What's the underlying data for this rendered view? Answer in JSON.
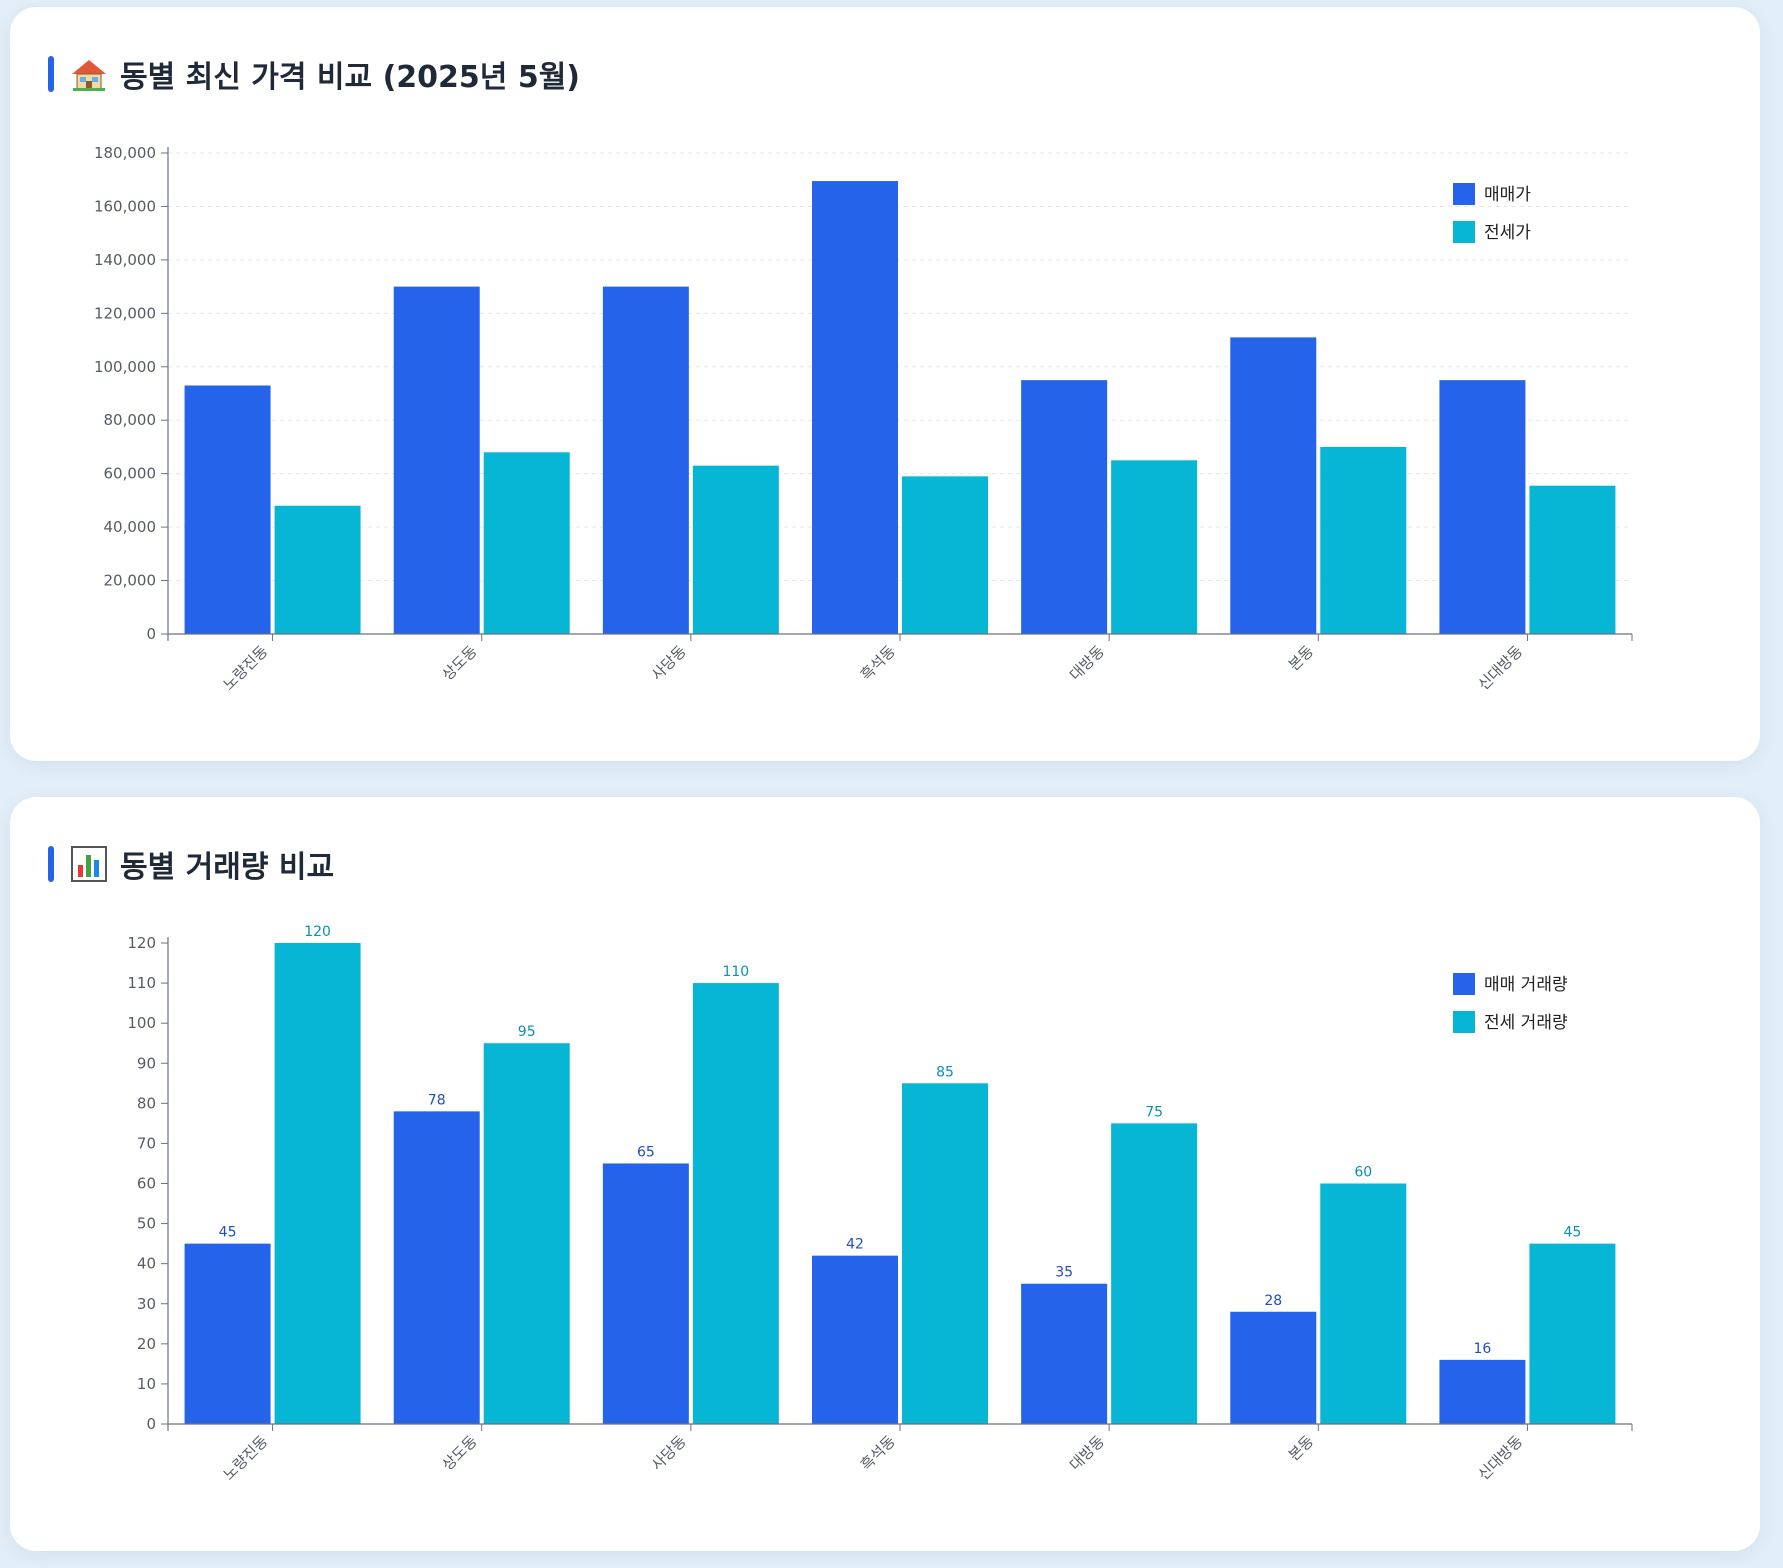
{
  "colors": {
    "sale": "#2563eb",
    "jeonse": "#06b6d4",
    "accent": "#2563eb"
  },
  "price_card": {
    "title": "동별 최신 가격 비교 (2025년 5월)",
    "icon": "house-icon"
  },
  "volume_card": {
    "title": "동별 거래량 비교",
    "icon": "bar-chart-icon"
  },
  "chart_data": [
    {
      "type": "bar",
      "categories": [
        "노량진동",
        "상도동",
        "사당동",
        "흑석동",
        "대방동",
        "본동",
        "신대방동"
      ],
      "series": [
        {
          "name": "매매가",
          "values": [
            93000,
            130000,
            130000,
            169500,
            95000,
            111000,
            95000
          ]
        },
        {
          "name": "전세가",
          "values": [
            48000,
            68000,
            63000,
            59000,
            65000,
            70000,
            55500
          ]
        }
      ],
      "yticks": [
        "0",
        "20,000",
        "40,000",
        "60,000",
        "80,000",
        "100,000",
        "120,000",
        "140,000",
        "160,000",
        "180,000"
      ],
      "ylim": [
        0,
        180000
      ],
      "grid": true,
      "legend": "top-right",
      "data_labels": false
    },
    {
      "type": "bar",
      "categories": [
        "노량진동",
        "상도동",
        "사당동",
        "흑석동",
        "대방동",
        "본동",
        "신대방동"
      ],
      "series": [
        {
          "name": "매매 거래량",
          "values": [
            45,
            78,
            65,
            42,
            35,
            28,
            16
          ]
        },
        {
          "name": "전세 거래량",
          "values": [
            120,
            95,
            110,
            85,
            75,
            60,
            45
          ]
        }
      ],
      "yticks": [
        "0",
        "10",
        "20",
        "30",
        "40",
        "50",
        "60",
        "70",
        "80",
        "90",
        "100",
        "110",
        "120"
      ],
      "ylim": [
        0,
        120
      ],
      "grid": false,
      "legend": "top-right",
      "data_labels": true
    }
  ]
}
